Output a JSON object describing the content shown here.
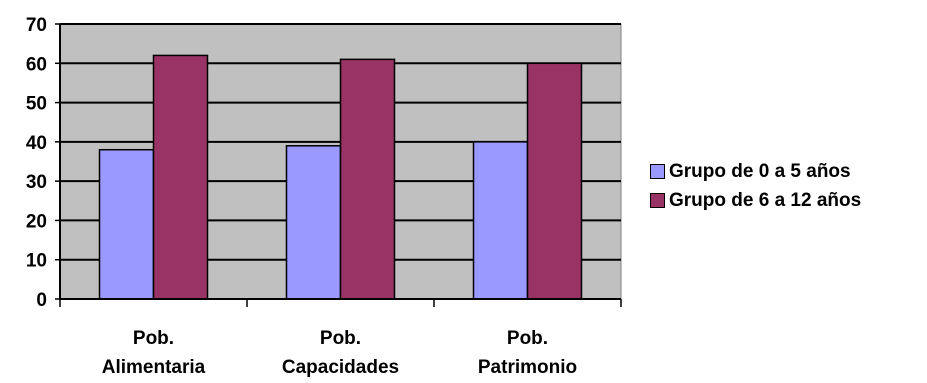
{
  "chart_data": {
    "type": "bar",
    "categories": [
      [
        "Pob.",
        "Alimentaria"
      ],
      [
        "Pob.",
        "Capacidades"
      ],
      [
        "Pob.",
        "Patrimonio"
      ]
    ],
    "series": [
      {
        "name": "Grupo de 0 a 5 años",
        "values": [
          38,
          39,
          40
        ],
        "color": "#9999FF"
      },
      {
        "name": "Grupo de 6 a 12 años",
        "values": [
          62,
          61,
          60
        ],
        "color": "#993366"
      }
    ],
    "ylim": [
      0,
      70
    ],
    "yticks": [
      0,
      10,
      20,
      30,
      40,
      50,
      60,
      70
    ],
    "grid": true,
    "plot_background": "#C0C0C0",
    "legend_position": "right",
    "title": "",
    "xlabel": "",
    "ylabel": ""
  }
}
